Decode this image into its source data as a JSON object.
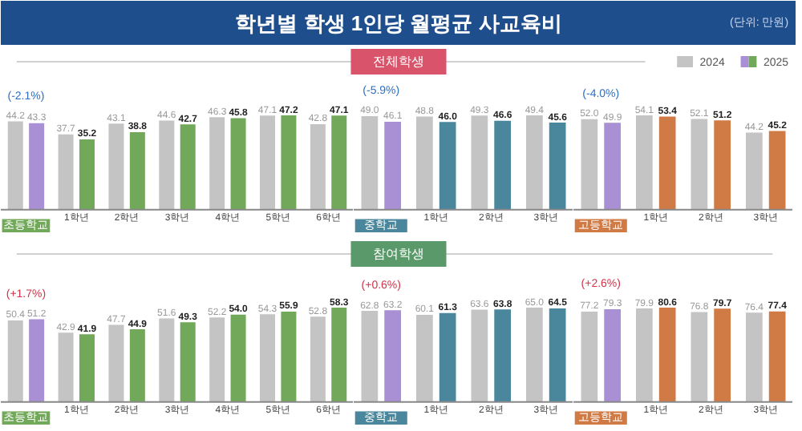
{
  "chart_data": [
    {
      "type": "bar",
      "title": "학년별 학생 1인당 월평균 사교육비",
      "annotations": [
        "(단위: 만원)",
        "(-2.1%)"
      ],
      "legend": "top right",
      "grid": false,
      "categories": [
        "초등학교",
        "1학년",
        "2학년",
        "3학년",
        "4학년",
        "5학년",
        "6학년"
      ],
      "series": [
        {
          "name": "2024",
          "color": "#c4c4c4",
          "values": [
            44.2,
            37.7,
            43.1,
            44.6,
            46.3,
            47.1,
            42.8
          ],
          "value_labels": [
            "44.2",
            "37.7",
            "43.1",
            "44.6",
            "46.3",
            "47.1",
            "42.8"
          ]
        },
        {
          "name": "2025",
          "colors": [
            "#a98fd3",
            "#72a85a",
            "#72a85a",
            "#72a85a",
            "#72a85a",
            "#72a85a",
            "#72a85a"
          ],
          "values": [
            43.3,
            35.2,
            38.8,
            42.7,
            45.8,
            47.2,
            47.1
          ],
          "value_labels": [
            "43.3",
            "35.2",
            "38.8",
            "42.7",
            "45.8",
            "47.2",
            "47.1"
          ]
        }
      ]
    },
    {
      "type": "bar",
      "title": "전체학생",
      "annotations": [
        "(-5.9%)"
      ],
      "grid": false,
      "categories": [
        "중학교",
        "1학년",
        "2학년",
        "3학년"
      ],
      "series": [
        {
          "color": "#c4c4c4",
          "values": [
            49.0,
            48.8,
            49.3,
            49.4
          ],
          "value_labels": [
            "49.0",
            "48.8",
            "49.3",
            "49.4"
          ]
        },
        {
          "colors": [
            "#a98fd3",
            "#4a879c",
            "#4a879c",
            "#4a879c"
          ],
          "values": [
            46.1,
            46.0,
            46.6,
            45.6
          ],
          "value_labels": [
            "46.1",
            "46.0",
            "46.6",
            "45.6"
          ]
        }
      ]
    },
    {
      "type": "bar",
      "annotations": [
        "(-4.0%)"
      ],
      "grid": false,
      "categories": [
        "고등학교",
        "1학년",
        "2학년",
        "3학년"
      ],
      "series": [
        {
          "color": "#c4c4c4",
          "values": [
            52.0,
            54.1,
            52.1,
            44.2
          ],
          "value_labels": [
            "52.0",
            "54.1",
            "52.1",
            "44.2"
          ]
        },
        {
          "colors": [
            "#a98fd3",
            "#d07a45",
            "#d07a45",
            "#d07a45"
          ],
          "values": [
            49.9,
            53.4,
            51.2,
            45.2
          ],
          "value_labels": [
            "49.9",
            "53.4",
            "51.2",
            "45.2"
          ]
        }
      ]
    },
    {
      "type": "bar",
      "annotations": [
        "(+1.7%)"
      ],
      "grid": false,
      "categories": [
        "초등학교",
        "1학년",
        "2학년",
        "3학년",
        "4학년",
        "5학년",
        "6학년"
      ],
      "series": [
        {
          "color": "#c4c4c4",
          "values": [
            50.4,
            42.9,
            47.7,
            51.6,
            52.2,
            54.3,
            52.8
          ],
          "value_labels": [
            "50.4",
            "42.9",
            "47.7",
            "51.6",
            "52.2",
            "54.3",
            "52.8"
          ]
        },
        {
          "colors": [
            "#a98fd3",
            "#72a85a",
            "#72a85a",
            "#72a85a",
            "#72a85a",
            "#72a85a",
            "#72a85a"
          ],
          "values": [
            51.2,
            41.9,
            44.9,
            49.3,
            54.0,
            55.9,
            58.3
          ],
          "value_labels": [
            "51.2",
            "41.9",
            "44.9",
            "49.3",
            "54.0",
            "55.9",
            "58.3"
          ]
        }
      ]
    },
    {
      "type": "bar",
      "title": "참여학생",
      "annotations": [
        "(+0.6%)"
      ],
      "grid": false,
      "categories": [
        "중학교",
        "1학년",
        "2학년",
        "3학년"
      ],
      "series": [
        {
          "color": "#c4c4c4",
          "values": [
            62.8,
            60.1,
            63.6,
            65.0
          ],
          "value_labels": [
            "62.8",
            "60.1",
            "63.6",
            "65.0"
          ]
        },
        {
          "colors": [
            "#a98fd3",
            "#4a879c",
            "#4a879c",
            "#4a879c"
          ],
          "values": [
            63.2,
            61.3,
            63.8,
            64.5
          ],
          "value_labels": [
            "63.2",
            "61.3",
            "63.8",
            "64.5"
          ]
        }
      ]
    },
    {
      "type": "bar",
      "annotations": [
        "(+2.6%)"
      ],
      "grid": false,
      "categories": [
        "고등학교",
        "1학년",
        "2학년",
        "3학년"
      ],
      "series": [
        {
          "color": "#c4c4c4",
          "values": [
            77.2,
            79.9,
            76.8,
            76.4
          ],
          "value_labels": [
            "77.2",
            "79.9",
            "76.8",
            "76.4"
          ]
        },
        {
          "colors": [
            "#a98fd3",
            "#d07a45",
            "#d07a45",
            "#d07a45"
          ],
          "values": [
            79.3,
            80.6,
            79.7,
            77.4
          ],
          "value_labels": [
            "79.3",
            "80.6",
            "79.7",
            "77.4"
          ]
        }
      ]
    }
  ]
}
